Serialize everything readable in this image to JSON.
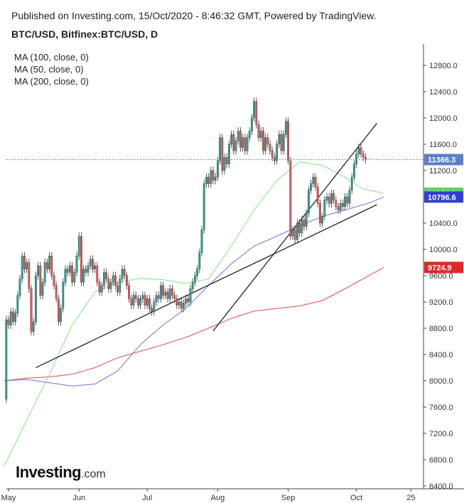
{
  "header": {
    "published": "Published on Investing.com, 15/Oct/2020 - 8:46:32 GMT, Powered by TradingView.",
    "symbol": "BTC/USD, Bitfinex:BTC/USD, D"
  },
  "legend": [
    "MA (100, close, 0)",
    "MA (50, close, 0)",
    "MA (200, close, 0)"
  ],
  "logo": {
    "brand": "Investing",
    "suffix": ".com"
  },
  "colors": {
    "up": "#26a69a",
    "down": "#ef5350",
    "ma50": "#78e878",
    "ma100": "#6a6ee0",
    "ma200": "#e84b4b",
    "price_badge": "#5a80c8",
    "ma50_badge": "#5fd35f",
    "ma100_badge": "#2f3fd0",
    "ma200_badge": "#e32626"
  },
  "chart_data": {
    "type": "candlestick",
    "ylim": [
      6400,
      12900
    ],
    "y_ticks": [
      6400,
      6800,
      7200,
      7600,
      8000,
      8400,
      8800,
      9200,
      9600,
      10000,
      10400,
      10800,
      11200,
      11600,
      12000,
      12400,
      12800
    ],
    "x_ticks": [
      {
        "label": "May",
        "day": 0
      },
      {
        "label": "Jun",
        "day": 31
      },
      {
        "label": "Jul",
        "day": 61
      },
      {
        "label": "Aug",
        "day": 92
      },
      {
        "label": "Sep",
        "day": 123
      },
      {
        "label": "Oct",
        "day": 153
      },
      {
        "label": "25",
        "day": 177
      }
    ],
    "last_price": 11366.3,
    "ma_labels": {
      "ma50": 10854.2,
      "ma100": 10796.6,
      "ma200": 9724.9
    },
    "trendlines": [
      {
        "from": [
          12,
          8200
        ],
        "to": [
          162,
          10680
        ]
      },
      {
        "from": [
          90,
          8760
        ],
        "to": [
          162,
          11920
        ]
      }
    ],
    "series": {
      "ma50": [
        [
          -2,
          6700
        ],
        [
          8,
          7400
        ],
        [
          18,
          8100
        ],
        [
          28,
          8850
        ],
        [
          38,
          9350
        ],
        [
          48,
          9500
        ],
        [
          58,
          9560
        ],
        [
          68,
          9540
        ],
        [
          78,
          9480
        ],
        [
          88,
          9550
        ],
        [
          98,
          10050
        ],
        [
          108,
          10600
        ],
        [
          118,
          11050
        ],
        [
          128,
          11330
        ],
        [
          138,
          11280
        ],
        [
          148,
          11100
        ],
        [
          156,
          10920
        ],
        [
          165,
          10854
        ]
      ],
      "ma100": [
        [
          -2,
          8000
        ],
        [
          8,
          8020
        ],
        [
          18,
          7970
        ],
        [
          28,
          7920
        ],
        [
          38,
          7950
        ],
        [
          48,
          8150
        ],
        [
          58,
          8550
        ],
        [
          68,
          8850
        ],
        [
          78,
          9100
        ],
        [
          88,
          9450
        ],
        [
          98,
          9780
        ],
        [
          108,
          10050
        ],
        [
          118,
          10200
        ],
        [
          128,
          10360
        ],
        [
          138,
          10500
        ],
        [
          148,
          10600
        ],
        [
          158,
          10700
        ],
        [
          165,
          10797
        ]
      ],
      "ma200": [
        [
          -2,
          8000
        ],
        [
          8,
          8040
        ],
        [
          18,
          8060
        ],
        [
          28,
          8100
        ],
        [
          38,
          8200
        ],
        [
          48,
          8350
        ],
        [
          58,
          8450
        ],
        [
          68,
          8550
        ],
        [
          78,
          8660
        ],
        [
          88,
          8800
        ],
        [
          98,
          8950
        ],
        [
          108,
          9060
        ],
        [
          118,
          9100
        ],
        [
          128,
          9140
        ],
        [
          138,
          9220
        ],
        [
          148,
          9400
        ],
        [
          158,
          9590
        ],
        [
          165,
          9725
        ]
      ]
    },
    "candles": [
      [
        -1,
        7720,
        8930
      ],
      [
        0,
        8930,
        8850
      ],
      [
        1,
        8850,
        9050
      ],
      [
        2,
        9050,
        8900
      ],
      [
        3,
        8900,
        9030
      ],
      [
        4,
        9030,
        9300
      ],
      [
        5,
        9300,
        9550
      ],
      [
        6,
        9550,
        9900
      ],
      [
        7,
        9900,
        9700
      ],
      [
        8,
        9700,
        9800
      ],
      [
        9,
        9800,
        9400
      ],
      [
        10,
        9400,
        8750
      ],
      [
        11,
        8750,
        8900
      ],
      [
        12,
        8900,
        9600
      ],
      [
        13,
        9600,
        9750
      ],
      [
        14,
        9750,
        9300
      ],
      [
        15,
        9300,
        9500
      ],
      [
        16,
        9500,
        9800
      ],
      [
        17,
        9800,
        9700
      ],
      [
        18,
        9700,
        9900
      ],
      [
        19,
        9900,
        9600
      ],
      [
        20,
        9600,
        9450
      ],
      [
        21,
        9450,
        9250
      ],
      [
        22,
        9250,
        8900
      ],
      [
        23,
        8900,
        9100
      ],
      [
        24,
        9100,
        9500
      ],
      [
        25,
        9500,
        9700
      ],
      [
        26,
        9700,
        9650
      ],
      [
        27,
        9650,
        9750
      ],
      [
        28,
        9750,
        9500
      ],
      [
        29,
        9500,
        9650
      ],
      [
        30,
        9650,
        9900
      ],
      [
        31,
        9900,
        10200
      ],
      [
        32,
        10200,
        9500
      ],
      [
        33,
        9500,
        9700
      ],
      [
        34,
        9700,
        9650
      ],
      [
        35,
        9650,
        9750
      ],
      [
        36,
        9750,
        9850
      ],
      [
        37,
        9850,
        9700
      ],
      [
        38,
        9700,
        9750
      ],
      [
        39,
        9750,
        9500
      ],
      [
        40,
        9500,
        9350
      ],
      [
        41,
        9350,
        9450
      ],
      [
        42,
        9450,
        9650
      ],
      [
        43,
        9650,
        9550
      ],
      [
        44,
        9550,
        9400
      ],
      [
        45,
        9400,
        9500
      ],
      [
        46,
        9500,
        9600
      ],
      [
        47,
        9600,
        9450
      ],
      [
        48,
        9450,
        9350
      ],
      [
        49,
        9350,
        9550
      ],
      [
        50,
        9550,
        9700
      ],
      [
        51,
        9700,
        9600
      ],
      [
        52,
        9600,
        9450
      ],
      [
        53,
        9450,
        9250
      ],
      [
        54,
        9250,
        9150
      ],
      [
        55,
        9150,
        9300
      ],
      [
        56,
        9300,
        9250
      ],
      [
        57,
        9250,
        9150
      ],
      [
        58,
        9150,
        9250
      ],
      [
        59,
        9250,
        9300
      ],
      [
        60,
        9300,
        9150
      ],
      [
        61,
        9150,
        9250
      ],
      [
        62,
        9250,
        9100
      ],
      [
        63,
        9100,
        9050
      ],
      [
        64,
        9050,
        9200
      ],
      [
        65,
        9200,
        9300
      ],
      [
        66,
        9300,
        9250
      ],
      [
        67,
        9250,
        9450
      ],
      [
        68,
        9450,
        9300
      ],
      [
        69,
        9300,
        9350
      ],
      [
        70,
        9350,
        9250
      ],
      [
        71,
        9250,
        9400
      ],
      [
        72,
        9400,
        9300
      ],
      [
        73,
        9300,
        9250
      ],
      [
        74,
        9250,
        9150
      ],
      [
        75,
        9150,
        9200
      ],
      [
        76,
        9200,
        9100
      ],
      [
        77,
        9100,
        9180
      ],
      [
        78,
        9180,
        9250
      ],
      [
        79,
        9250,
        9200
      ],
      [
        80,
        9200,
        9400
      ],
      [
        81,
        9400,
        9500
      ],
      [
        82,
        9500,
        9600
      ],
      [
        83,
        9600,
        9700
      ],
      [
        84,
        9700,
        9950
      ],
      [
        85,
        9950,
        10300
      ],
      [
        86,
        10300,
        11000
      ],
      [
        87,
        11000,
        11100
      ],
      [
        88,
        11100,
        11000
      ],
      [
        89,
        11000,
        11200
      ],
      [
        90,
        11200,
        11050
      ],
      [
        91,
        11050,
        11100
      ],
      [
        92,
        11100,
        11350
      ],
      [
        93,
        11350,
        11700
      ],
      [
        94,
        11700,
        11200
      ],
      [
        95,
        11200,
        11400
      ],
      [
        96,
        11400,
        11300
      ],
      [
        97,
        11300,
        11600
      ],
      [
        98,
        11600,
        11750
      ],
      [
        99,
        11750,
        11500
      ],
      [
        100,
        11500,
        11650
      ],
      [
        101,
        11650,
        11800
      ],
      [
        102,
        11800,
        11550
      ],
      [
        103,
        11550,
        11700
      ],
      [
        104,
        11700,
        11500
      ],
      [
        105,
        11500,
        11700
      ],
      [
        106,
        11700,
        11800
      ],
      [
        107,
        11800,
        12000
      ],
      [
        108,
        12000,
        12250
      ],
      [
        109,
        12250,
        11900
      ],
      [
        110,
        11900,
        11700
      ],
      [
        111,
        11700,
        11800
      ],
      [
        112,
        11800,
        11500
      ],
      [
        113,
        11500,
        11700
      ],
      [
        114,
        11700,
        11600
      ],
      [
        115,
        11600,
        11500
      ],
      [
        116,
        11500,
        11400
      ],
      [
        117,
        11400,
        11350
      ],
      [
        118,
        11350,
        11600
      ],
      [
        119,
        11600,
        11750
      ],
      [
        120,
        11750,
        11500
      ],
      [
        121,
        11500,
        11750
      ],
      [
        122,
        11750,
        11950
      ],
      [
        123,
        11950,
        11350
      ],
      [
        124,
        11350,
        10200
      ],
      [
        125,
        10200,
        10300
      ],
      [
        126,
        10300,
        10150
      ],
      [
        127,
        10150,
        10400
      ],
      [
        128,
        10400,
        10250
      ],
      [
        129,
        10250,
        10450
      ],
      [
        130,
        10450,
        10350
      ],
      [
        131,
        10350,
        10550
      ],
      [
        132,
        10550,
        10900
      ],
      [
        133,
        10900,
        11000
      ],
      [
        134,
        11000,
        11100
      ],
      [
        135,
        11100,
        10950
      ],
      [
        136,
        10950,
        10700
      ],
      [
        137,
        10700,
        10400
      ],
      [
        138,
        10400,
        10500
      ],
      [
        139,
        10500,
        10750
      ],
      [
        140,
        10750,
        10800
      ],
      [
        141,
        10800,
        10700
      ],
      [
        142,
        10700,
        10850
      ],
      [
        143,
        10850,
        10750
      ],
      [
        144,
        10750,
        10650
      ],
      [
        145,
        10650,
        10600
      ],
      [
        146,
        10600,
        10700
      ],
      [
        147,
        10700,
        10650
      ],
      [
        148,
        10650,
        10800
      ],
      [
        149,
        10800,
        10700
      ],
      [
        150,
        10700,
        10900
      ],
      [
        151,
        10900,
        11100
      ],
      [
        152,
        11100,
        11300
      ],
      [
        153,
        11300,
        11450
      ],
      [
        154,
        11450,
        11550
      ],
      [
        155,
        11550,
        11450
      ],
      [
        156,
        11450,
        11400
      ],
      [
        157,
        11400,
        11366
      ]
    ]
  }
}
